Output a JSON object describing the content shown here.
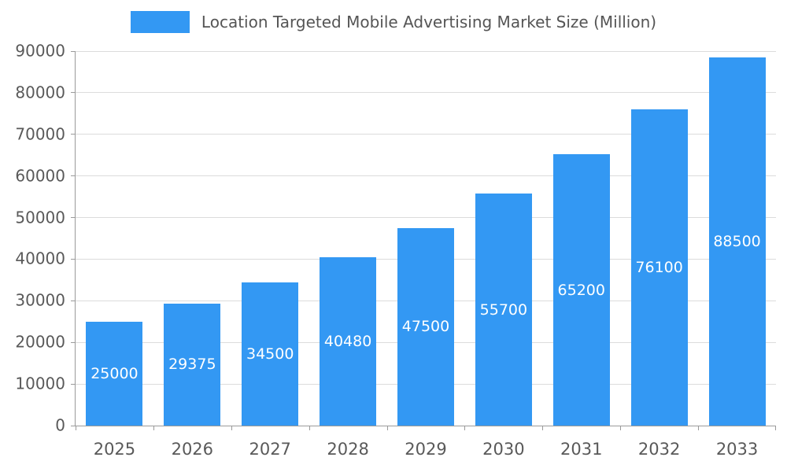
{
  "legend": {
    "label": "Location Targeted Mobile Advertising Market Size (Million)",
    "swatch_color": "#3398f3"
  },
  "chart_data": {
    "type": "bar",
    "title": "Location Targeted Mobile Advertising Market Size (Million)",
    "categories": [
      "2025",
      "2026",
      "2027",
      "2028",
      "2029",
      "2030",
      "2031",
      "2032",
      "2033"
    ],
    "values": [
      25000,
      29375,
      34500,
      40480,
      47500,
      55700,
      65200,
      76100,
      88500
    ],
    "value_labels": [
      "25000",
      "29375",
      "34500",
      "40480",
      "47500",
      "55700",
      "65200",
      "76100",
      "88500"
    ],
    "xlabel": "",
    "ylabel": "",
    "ylim": [
      0,
      90000
    ],
    "yticks": [
      0,
      10000,
      20000,
      30000,
      40000,
      50000,
      60000,
      70000,
      80000,
      90000
    ],
    "grid": true,
    "legend_position": "top",
    "bar_color": "#3398f3",
    "value_label_color": "#ffffff",
    "axis_text_color": "#595959"
  }
}
